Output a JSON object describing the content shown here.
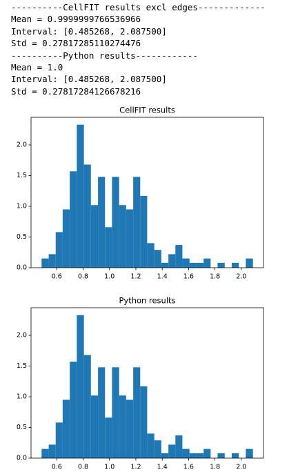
{
  "console": [
    "----------CellFIT results excl edges-------------",
    "Mean = 0.9999999766536966",
    "Interval: [0.485268, 2.087500]",
    "Std = 0.27817285110274476",
    "----------Python results------------",
    "Mean = 1.0",
    "Interval: [0.485268, 2.087500]",
    "Std = 0.27817284126678216"
  ],
  "chart_data": [
    {
      "type": "histogram",
      "title": "CellFIT results",
      "color": "#1f77b4",
      "bins": [
        0.485,
        0.539,
        0.592,
        0.645,
        0.699,
        0.752,
        0.806,
        0.859,
        0.913,
        0.966,
        1.019,
        1.073,
        1.126,
        1.18,
        1.233,
        1.286,
        1.34,
        1.393,
        1.447,
        1.5,
        1.553,
        1.607,
        1.66,
        1.714,
        1.767,
        1.82,
        1.874,
        1.927,
        1.981,
        2.034,
        2.088
      ],
      "values": [
        0.15,
        0.22,
        0.58,
        0.95,
        1.57,
        2.33,
        1.68,
        1.02,
        1.48,
        0.66,
        1.48,
        1.02,
        0.95,
        1.48,
        1.17,
        0.4,
        0.29,
        0.08,
        0.22,
        0.37,
        0.15,
        0.08,
        0.08,
        0.15,
        0,
        0.08,
        0,
        0.08,
        0,
        0.15
      ],
      "xlim": [
        0.405,
        2.168
      ],
      "ylim": [
        0,
        2.45
      ],
      "xticks": [
        0.6,
        0.8,
        {
          "value": 1.0,
          "label": "1.0"
        },
        1.2,
        1.4,
        1.6,
        1.8,
        {
          "value": 2.0,
          "label": "2.0"
        }
      ],
      "yticks": [
        {
          "value": 0,
          "label": "0.0"
        },
        0.5,
        {
          "value": 1.0,
          "label": "1.0"
        },
        1.5,
        {
          "value": 2.0,
          "label": "2.0"
        }
      ]
    },
    {
      "type": "histogram",
      "title": "Python results",
      "color": "#1f77b4",
      "bins": [
        0.485,
        0.539,
        0.592,
        0.645,
        0.699,
        0.752,
        0.806,
        0.859,
        0.913,
        0.966,
        1.019,
        1.073,
        1.126,
        1.18,
        1.233,
        1.286,
        1.34,
        1.393,
        1.447,
        1.5,
        1.553,
        1.607,
        1.66,
        1.714,
        1.767,
        1.82,
        1.874,
        1.927,
        1.981,
        2.034,
        2.088
      ],
      "values": [
        0.15,
        0.22,
        0.58,
        0.95,
        1.57,
        2.33,
        1.68,
        1.02,
        1.48,
        0.66,
        1.48,
        1.02,
        0.95,
        1.48,
        1.17,
        0.4,
        0.29,
        0.08,
        0.22,
        0.37,
        0.15,
        0.08,
        0.08,
        0.15,
        0,
        0.08,
        0,
        0.08,
        0,
        0.15
      ],
      "xlim": [
        0.405,
        2.168
      ],
      "ylim": [
        0,
        2.45
      ],
      "xticks": [
        0.6,
        0.8,
        {
          "value": 1.0,
          "label": "1.0"
        },
        1.2,
        1.4,
        1.6,
        1.8,
        {
          "value": 2.0,
          "label": "2.0"
        }
      ],
      "yticks": [
        {
          "value": 0,
          "label": "0.0"
        },
        0.5,
        {
          "value": 1.0,
          "label": "1.0"
        },
        1.5,
        {
          "value": 2.0,
          "label": "2.0"
        }
      ]
    }
  ]
}
